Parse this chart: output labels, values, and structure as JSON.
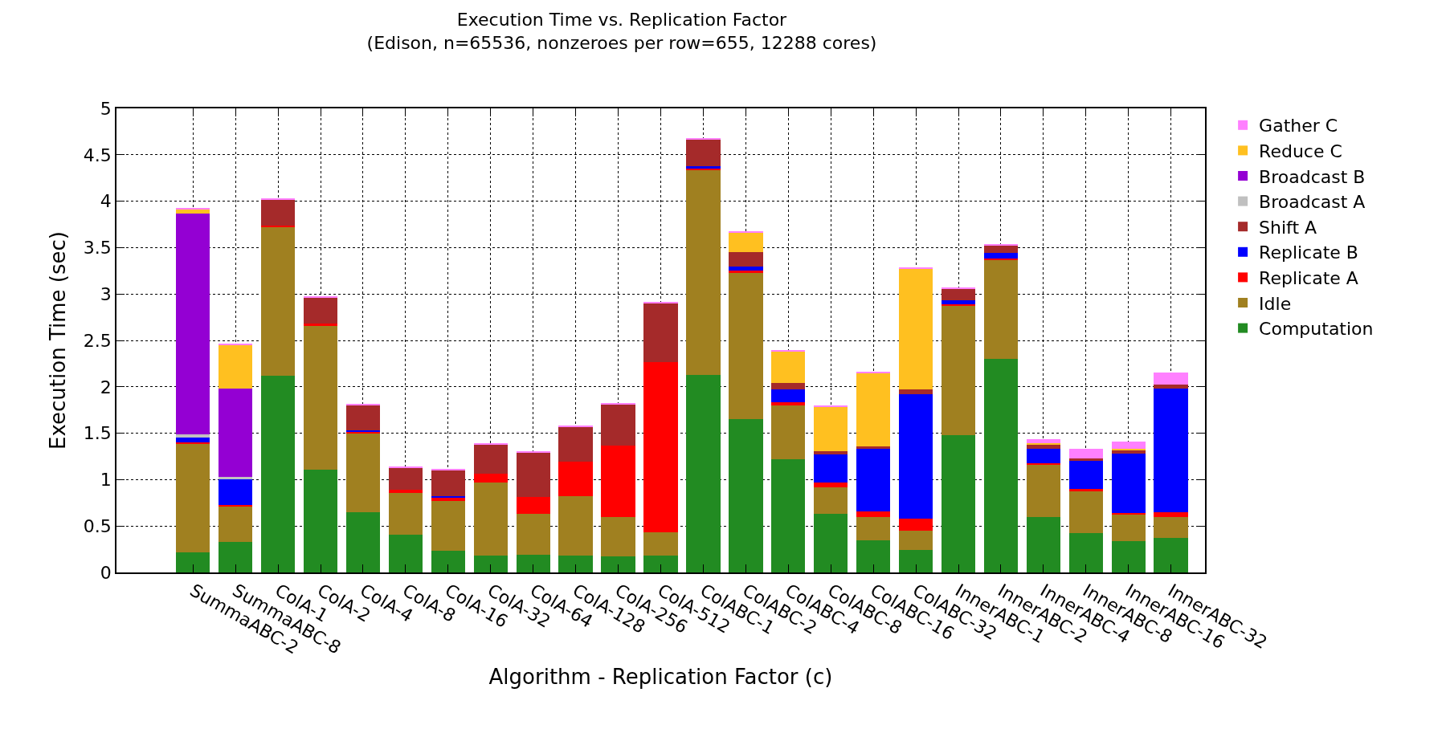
{
  "chart_data": {
    "type": "bar",
    "stacked": true,
    "title": "Execution Time vs. Replication Factor",
    "subtitle": "(Edison, n=65536, nonzeroes per row=655, 12288 cores)",
    "xlabel": "Algorithm - Replication Factor (c)",
    "ylabel": "Execution Time (sec)",
    "categories": [
      "SummaABC-2",
      "SummaABC-8",
      "ColA-1",
      "ColA-2",
      "ColA-4",
      "ColA-8",
      "ColA-16",
      "ColA-32",
      "ColA-64",
      "ColA-128",
      "ColA-256",
      "ColA-512",
      "ColABC-1",
      "ColABC-2",
      "ColABC-4",
      "ColABC-8",
      "ColABC-16",
      "ColABC-32",
      "InnerABC-1",
      "InnerABC-2",
      "InnerABC-4",
      "InnerABC-8",
      "InnerABC-16",
      "InnerABC-32"
    ],
    "series": [
      {
        "name": "Computation",
        "color": "#228b22",
        "values": [
          0.22,
          0.33,
          2.12,
          1.11,
          0.65,
          0.41,
          0.23,
          0.18,
          0.19,
          0.18,
          0.17,
          0.18,
          2.13,
          1.65,
          1.22,
          0.63,
          0.35,
          0.24,
          1.48,
          2.3,
          0.6,
          0.42,
          0.34,
          0.37
        ]
      },
      {
        "name": "Idle",
        "color": "#a08020",
        "values": [
          1.16,
          0.38,
          1.6,
          1.55,
          0.85,
          0.45,
          0.54,
          0.79,
          0.44,
          0.64,
          0.43,
          0.25,
          2.21,
          1.58,
          0.58,
          0.29,
          0.25,
          0.21,
          1.4,
          1.07,
          0.56,
          0.45,
          0.28,
          0.23
        ]
      },
      {
        "name": "Replicate A",
        "color": "#ff0000",
        "values": [
          0.02,
          0.02,
          0.02,
          0.02,
          0.02,
          0.03,
          0.04,
          0.09,
          0.18,
          0.37,
          0.77,
          1.84,
          0.01,
          0.02,
          0.03,
          0.05,
          0.06,
          0.13,
          0.01,
          0.01,
          0.02,
          0.03,
          0.02,
          0.05
        ]
      },
      {
        "name": "Replicate B",
        "color": "#0000ff",
        "values": [
          0.05,
          0.27,
          0,
          0,
          0.01,
          0,
          0.01,
          0,
          0,
          0,
          0,
          0,
          0.03,
          0.05,
          0.14,
          0.3,
          0.67,
          1.34,
          0.04,
          0.06,
          0.15,
          0.3,
          0.64,
          1.33
        ]
      },
      {
        "name": "Shift A",
        "color": "#a52a2a",
        "values": [
          0,
          0,
          0.28,
          0.28,
          0.27,
          0.24,
          0.28,
          0.32,
          0.48,
          0.38,
          0.44,
          0.63,
          0.29,
          0.15,
          0.07,
          0.04,
          0.03,
          0.05,
          0.13,
          0.08,
          0.05,
          0.03,
          0.04,
          0.04
        ]
      },
      {
        "name": "Broadcast A",
        "color": "#c0c0c0",
        "values": [
          0.04,
          0.03,
          0,
          0,
          0,
          0,
          0,
          0,
          0,
          0,
          0,
          0,
          0,
          0,
          0,
          0,
          0,
          0,
          0,
          0,
          0,
          0,
          0,
          0
        ]
      },
      {
        "name": "Broadcast B",
        "color": "#9400d3",
        "values": [
          2.38,
          0.95,
          0,
          0,
          0,
          0,
          0,
          0,
          0,
          0,
          0,
          0,
          0,
          0,
          0,
          0,
          0,
          0,
          0,
          0,
          0,
          0,
          0,
          0
        ]
      },
      {
        "name": "Reduce C",
        "color": "#ffc020",
        "values": [
          0.04,
          0.47,
          0,
          0,
          0,
          0,
          0,
          0,
          0,
          0,
          0,
          0,
          0,
          0.21,
          0.34,
          0.48,
          0.79,
          1.3,
          0,
          0,
          0.01,
          0,
          0.01,
          0
        ]
      },
      {
        "name": "Gather C",
        "color": "#ff80ff",
        "values": [
          0.01,
          0.01,
          0.01,
          0.01,
          0.01,
          0.01,
          0.01,
          0.01,
          0.01,
          0.01,
          0.01,
          0.01,
          0.01,
          0.01,
          0.01,
          0.01,
          0.01,
          0.01,
          0.01,
          0.02,
          0.05,
          0.1,
          0.08,
          0.13
        ]
      }
    ],
    "ylim": [
      0,
      5
    ],
    "yticks": [
      0,
      0.5,
      1,
      1.5,
      2,
      2.5,
      3,
      3.5,
      4,
      4.5,
      5
    ],
    "grid": true,
    "legend": "top right"
  }
}
